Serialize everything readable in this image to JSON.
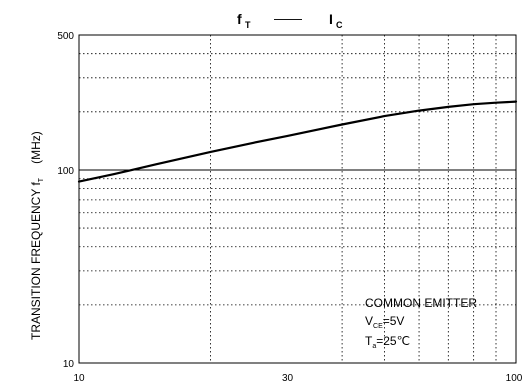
{
  "chart_data": {
    "type": "line",
    "title": {
      "main": "f",
      "main_sub": "T",
      "dash": "——",
      "second": "I",
      "second_sub": "C"
    },
    "ylabel": {
      "main": "TRANSITION FREQUENCY   f",
      "sub": "T",
      "unit": "(MHz)"
    },
    "x_scale": "log",
    "y_scale": "log",
    "xlim": [
      10,
      100
    ],
    "ylim": [
      10,
      500
    ],
    "x_tick_labels": [
      {
        "value": 10,
        "label": "10"
      },
      {
        "value": 30,
        "label": "30"
      },
      {
        "value": 100,
        "label": "100"
      }
    ],
    "y_tick_labels": [
      {
        "value": 10,
        "label": "10"
      },
      {
        "value": 100,
        "label": "100"
      },
      {
        "value": 500,
        "label": "500"
      }
    ],
    "grid": true,
    "x_minor_grid": [
      20,
      40,
      50,
      60,
      70,
      80,
      90
    ],
    "y_minor_grid": [
      20,
      30,
      40,
      50,
      60,
      70,
      80,
      90,
      200,
      300,
      400
    ],
    "y_major_grid": [
      100
    ],
    "series": [
      {
        "x": [
          10,
          12,
          15,
          20,
          25,
          30,
          40,
          50,
          60,
          70,
          80,
          90,
          100
        ],
        "y": [
          87,
          95,
          107,
          124,
          138,
          150,
          172,
          190,
          203,
          212,
          219,
          223,
          226
        ]
      }
    ],
    "annotation": {
      "line1": "COMMON EMITTER",
      "line2_main": "V",
      "line2_sub": "CE",
      "line2_rest": "=5V",
      "line3_main": "T",
      "line3_sub": "a",
      "line3_rest": "=25℃"
    }
  }
}
